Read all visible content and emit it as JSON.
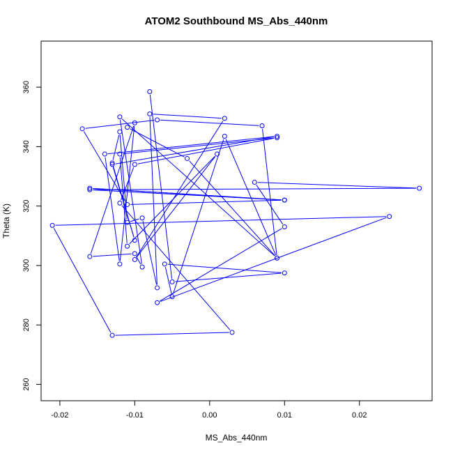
{
  "chart_data": {
    "type": "scatter",
    "title": "ATOM2 Southbound MS_Abs_440nm",
    "xlabel": "MS_Abs_440nm",
    "ylabel": "Theta (K)",
    "xlim": [
      -0.0225,
      0.0297
    ],
    "ylim": [
      254.5,
      375.5
    ],
    "xticks": [
      -0.02,
      -0.01,
      0.0,
      0.01,
      0.02
    ],
    "xtick_labels": [
      "-0.02",
      "-0.01",
      "0.00",
      "0.01",
      "0.02"
    ],
    "yticks": [
      260,
      280,
      300,
      320,
      340,
      360
    ],
    "ytick_labels": [
      "260",
      "280",
      "300",
      "320",
      "340",
      "360"
    ],
    "grid": false,
    "legend": "none",
    "color": "#0000ff",
    "connect_points": true,
    "points": [
      {
        "x": -0.008,
        "y": 358.5
      },
      {
        "x": -0.005,
        "y": 294.5
      },
      {
        "x": 0.01,
        "y": 297.5
      },
      {
        "x": -0.006,
        "y": 300.5
      },
      {
        "x": -0.005,
        "y": 289.5
      },
      {
        "x": 0.002,
        "y": 343.5
      },
      {
        "x": 0.009,
        "y": 302.5
      },
      {
        "x": -0.012,
        "y": 350.0
      },
      {
        "x": -0.009,
        "y": 299.5
      },
      {
        "x": -0.01,
        "y": 304.0
      },
      {
        "x": -0.016,
        "y": 303.0
      },
      {
        "x": -0.01,
        "y": 348.0
      },
      {
        "x": -0.012,
        "y": 300.5
      },
      {
        "x": -0.014,
        "y": 337.5
      },
      {
        "x": 0.009,
        "y": 343.5
      },
      {
        "x": -0.013,
        "y": 334.0
      },
      {
        "x": -0.01,
        "y": 308.5
      },
      {
        "x": -0.013,
        "y": 334.5
      },
      {
        "x": -0.012,
        "y": 345.0
      },
      {
        "x": -0.011,
        "y": 314.5
      },
      {
        "x": -0.009,
        "y": 316.0
      },
      {
        "x": -0.007,
        "y": 292.5
      },
      {
        "x": -0.008,
        "y": 351.0
      },
      {
        "x": 0.002,
        "y": 349.5
      },
      {
        "x": -0.01,
        "y": 302.0
      },
      {
        "x": 0.001,
        "y": 337.5
      },
      {
        "x": -0.011,
        "y": 306.5
      },
      {
        "x": -0.012,
        "y": 337.5
      },
      {
        "x": 0.009,
        "y": 343.0
      },
      {
        "x": -0.01,
        "y": 334.0
      },
      {
        "x": -0.012,
        "y": 321.0
      },
      {
        "x": 0.003,
        "y": 277.5
      },
      {
        "x": -0.013,
        "y": 276.5
      },
      {
        "x": -0.021,
        "y": 313.5
      },
      {
        "x": 0.024,
        "y": 316.5
      },
      {
        "x": -0.007,
        "y": 287.5
      },
      {
        "x": 0.01,
        "y": 313.0
      },
      {
        "x": 0.006,
        "y": 328.0
      },
      {
        "x": 0.028,
        "y": 326.0
      },
      {
        "x": -0.016,
        "y": 325.5
      },
      {
        "x": 0.01,
        "y": 322.0
      },
      {
        "x": -0.016,
        "y": 326.0
      },
      {
        "x": 0.01,
        "y": 322.0
      },
      {
        "x": -0.011,
        "y": 320.5
      },
      {
        "x": -0.017,
        "y": 346.0
      },
      {
        "x": -0.007,
        "y": 349.0
      },
      {
        "x": 0.007,
        "y": 347.0
      },
      {
        "x": 0.009,
        "y": 302.5
      },
      {
        "x": -0.003,
        "y": 336.0
      },
      {
        "x": -0.011,
        "y": 346.5
      }
    ]
  }
}
